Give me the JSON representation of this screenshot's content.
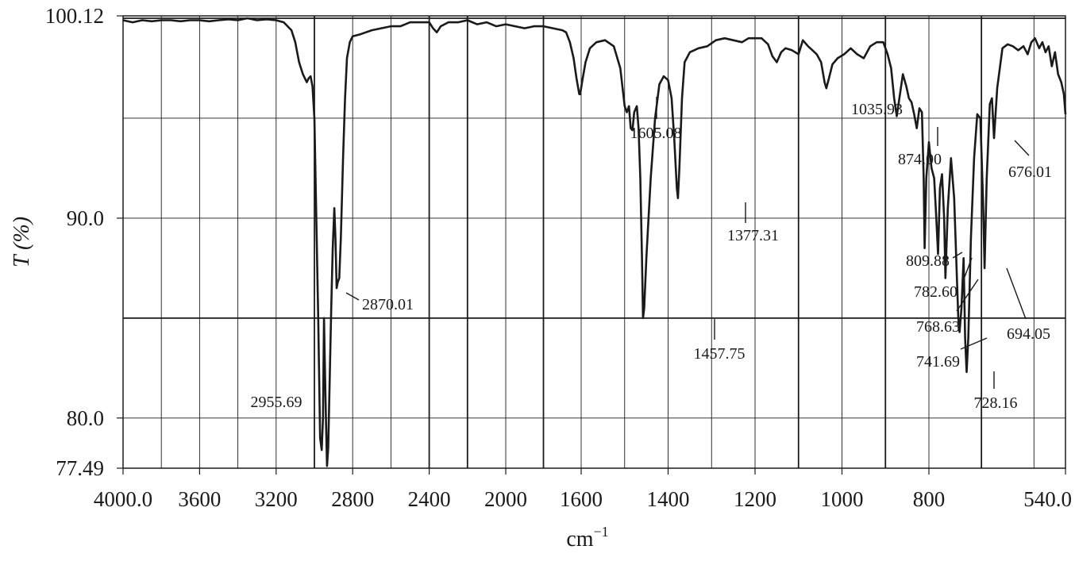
{
  "chart_data": {
    "type": "line",
    "title": "",
    "xlabel": "cm",
    "xlabel_superscript": "−1",
    "ylabel": "T (%)",
    "x_reversed": true,
    "xlim": [
      4000.0,
      540.0
    ],
    "ylim": [
      77.49,
      100.12
    ],
    "x_tick_labels": [
      {
        "value": 4000,
        "label": "4000.0"
      },
      {
        "value": 3600,
        "label": "3600"
      },
      {
        "value": 3200,
        "label": "3200"
      },
      {
        "value": 2800,
        "label": "2800"
      },
      {
        "value": 2400,
        "label": "2400"
      },
      {
        "value": 2000,
        "label": "2000"
      },
      {
        "value": 1600,
        "label": "1600"
      },
      {
        "value": 1400,
        "label": "1400"
      },
      {
        "value": 1200,
        "label": "1200"
      },
      {
        "value": 1000,
        "label": "1000"
      },
      {
        "value": 800,
        "label": "800"
      },
      {
        "value": 540,
        "label": "540.0"
      }
    ],
    "y_tick_labels": [
      {
        "value": 100.12,
        "label": "100.12"
      },
      {
        "value": 90.0,
        "label": "90.0"
      },
      {
        "value": 80.0,
        "label": "80.0"
      },
      {
        "value": 77.49,
        "label": "77.49"
      }
    ],
    "grid": true,
    "x_gridlines": [
      3800,
      3600,
      3400,
      3200,
      3000,
      2800,
      2600,
      2400,
      2200,
      2000,
      1800,
      1600,
      1500,
      1400,
      1300,
      1200,
      1100,
      1000,
      900,
      800,
      700,
      600
    ],
    "x_gridlines_major": [
      3000,
      2400,
      2200,
      1800,
      1100,
      900,
      700
    ],
    "y_gridlines": [
      100.0,
      95.0,
      90.0,
      85.0,
      80.0
    ],
    "y_gridlines_major": [
      100.0,
      85.0
    ],
    "series": [
      {
        "points": [
          [
            4000,
            99.9
          ],
          [
            3950,
            99.8
          ],
          [
            3900,
            99.9
          ],
          [
            3850,
            99.85
          ],
          [
            3800,
            99.9
          ],
          [
            3750,
            99.9
          ],
          [
            3700,
            99.85
          ],
          [
            3650,
            99.9
          ],
          [
            3600,
            99.9
          ],
          [
            3550,
            99.85
          ],
          [
            3500,
            99.9
          ],
          [
            3450,
            99.95
          ],
          [
            3400,
            99.9
          ],
          [
            3350,
            100.0
          ],
          [
            3300,
            99.9
          ],
          [
            3250,
            99.95
          ],
          [
            3200,
            99.9
          ],
          [
            3160,
            99.8
          ],
          [
            3120,
            99.4
          ],
          [
            3100,
            98.8
          ],
          [
            3080,
            97.8
          ],
          [
            3060,
            97.2
          ],
          [
            3040,
            96.8
          ],
          [
            3030,
            97.0
          ],
          [
            3020,
            97.1
          ],
          [
            3010,
            96.6
          ],
          [
            3000,
            95.0
          ],
          [
            2990,
            90.0
          ],
          [
            2980,
            85.0
          ],
          [
            2970,
            79.0
          ],
          [
            2962,
            78.4
          ],
          [
            2955,
            80.0
          ],
          [
            2950,
            85.0
          ],
          [
            2946,
            83.0
          ],
          [
            2940,
            80.0
          ],
          [
            2934,
            77.6
          ],
          [
            2928,
            78.5
          ],
          [
            2920,
            82.0
          ],
          [
            2912,
            85.5
          ],
          [
            2904,
            88.5
          ],
          [
            2896,
            90.5
          ],
          [
            2890,
            89.0
          ],
          [
            2884,
            86.5
          ],
          [
            2878,
            86.8
          ],
          [
            2870,
            87.0
          ],
          [
            2862,
            89.0
          ],
          [
            2850,
            93.0
          ],
          [
            2840,
            96.0
          ],
          [
            2830,
            98.0
          ],
          [
            2815,
            98.8
          ],
          [
            2800,
            99.1
          ],
          [
            2760,
            99.2
          ],
          [
            2700,
            99.4
          ],
          [
            2650,
            99.5
          ],
          [
            2600,
            99.6
          ],
          [
            2550,
            99.6
          ],
          [
            2500,
            99.8
          ],
          [
            2450,
            99.8
          ],
          [
            2400,
            99.8
          ],
          [
            2380,
            99.5
          ],
          [
            2360,
            99.3
          ],
          [
            2340,
            99.6
          ],
          [
            2320,
            99.7
          ],
          [
            2300,
            99.8
          ],
          [
            2250,
            99.8
          ],
          [
            2200,
            99.9
          ],
          [
            2150,
            99.7
          ],
          [
            2100,
            99.8
          ],
          [
            2050,
            99.6
          ],
          [
            2000,
            99.7
          ],
          [
            1950,
            99.6
          ],
          [
            1900,
            99.5
          ],
          [
            1850,
            99.6
          ],
          [
            1800,
            99.6
          ],
          [
            1750,
            99.5
          ],
          [
            1700,
            99.4
          ],
          [
            1680,
            99.3
          ],
          [
            1660,
            98.8
          ],
          [
            1640,
            98.0
          ],
          [
            1625,
            97.0
          ],
          [
            1610,
            96.2
          ],
          [
            1605,
            96.2
          ],
          [
            1598,
            96.8
          ],
          [
            1590,
            97.8
          ],
          [
            1580,
            98.5
          ],
          [
            1565,
            98.8
          ],
          [
            1545,
            98.9
          ],
          [
            1525,
            98.6
          ],
          [
            1510,
            97.5
          ],
          [
            1500,
            95.6
          ],
          [
            1495,
            95.3
          ],
          [
            1490,
            95.6
          ],
          [
            1486,
            94.5
          ],
          [
            1482,
            94.4
          ],
          [
            1478,
            95.3
          ],
          [
            1472,
            95.6
          ],
          [
            1468,
            94.5
          ],
          [
            1464,
            92.0
          ],
          [
            1460,
            88.0
          ],
          [
            1457.75,
            85.0
          ],
          [
            1455,
            85.5
          ],
          [
            1450,
            88.0
          ],
          [
            1440,
            92.0
          ],
          [
            1430,
            95.0
          ],
          [
            1420,
            96.7
          ],
          [
            1410,
            97.1
          ],
          [
            1400,
            96.9
          ],
          [
            1392,
            96.0
          ],
          [
            1386,
            94.0
          ],
          [
            1380,
            91.5
          ],
          [
            1377.31,
            91.0
          ],
          [
            1374,
            92.5
          ],
          [
            1368,
            96.0
          ],
          [
            1362,
            97.8
          ],
          [
            1350,
            98.3
          ],
          [
            1330,
            98.5
          ],
          [
            1310,
            98.6
          ],
          [
            1290,
            98.9
          ],
          [
            1270,
            99.0
          ],
          [
            1250,
            98.9
          ],
          [
            1230,
            98.8
          ],
          [
            1215,
            99.0
          ],
          [
            1200,
            99.0
          ],
          [
            1185,
            99.0
          ],
          [
            1170,
            98.7
          ],
          [
            1160,
            98.1
          ],
          [
            1150,
            97.8
          ],
          [
            1140,
            98.3
          ],
          [
            1130,
            98.5
          ],
          [
            1115,
            98.4
          ],
          [
            1100,
            98.2
          ],
          [
            1090,
            98.9
          ],
          [
            1078,
            98.6
          ],
          [
            1068,
            98.4
          ],
          [
            1058,
            98.2
          ],
          [
            1048,
            97.8
          ],
          [
            1040,
            96.8
          ],
          [
            1035.93,
            96.5
          ],
          [
            1030,
            97.0
          ],
          [
            1022,
            97.7
          ],
          [
            1010,
            98.0
          ],
          [
            995,
            98.2
          ],
          [
            980,
            98.5
          ],
          [
            965,
            98.2
          ],
          [
            950,
            98.0
          ],
          [
            935,
            98.6
          ],
          [
            920,
            98.8
          ],
          [
            905,
            98.8
          ],
          [
            895,
            98.2
          ],
          [
            887,
            97.5
          ],
          [
            880,
            96.0
          ],
          [
            874,
            95.1
          ],
          [
            868,
            96.0
          ],
          [
            860,
            97.2
          ],
          [
            852,
            96.6
          ],
          [
            846,
            96.0
          ],
          [
            840,
            95.8
          ],
          [
            834,
            95.2
          ],
          [
            828,
            94.5
          ],
          [
            822,
            95.5
          ],
          [
            816,
            95.3
          ],
          [
            812,
            92.0
          ],
          [
            809.88,
            88.5
          ],
          [
            806,
            92.0
          ],
          [
            800,
            93.8
          ],
          [
            795,
            92.5
          ],
          [
            790,
            92.0
          ],
          [
            786,
            90.0
          ],
          [
            782.6,
            88.2
          ],
          [
            779,
            91.5
          ],
          [
            775,
            92.2
          ],
          [
            771,
            90.0
          ],
          [
            768.63,
            87.0
          ],
          [
            764,
            90.5
          ],
          [
            758,
            93.0
          ],
          [
            752,
            91.0
          ],
          [
            748,
            88.0
          ],
          [
            744,
            85.0
          ],
          [
            741.69,
            84.3
          ],
          [
            738,
            85.5
          ],
          [
            734,
            88.0
          ],
          [
            731,
            84.0
          ],
          [
            728.16,
            82.3
          ],
          [
            725,
            84.0
          ],
          [
            720,
            89.0
          ],
          [
            714,
            93.0
          ],
          [
            708,
            95.2
          ],
          [
            702,
            95.0
          ],
          [
            697,
            91.0
          ],
          [
            694.05,
            87.5
          ],
          [
            690,
            92.0
          ],
          [
            684,
            95.7
          ],
          [
            680,
            96.0
          ],
          [
            676.01,
            94.0
          ],
          [
            670,
            96.5
          ],
          [
            660,
            98.5
          ],
          [
            650,
            98.7
          ],
          [
            640,
            98.6
          ],
          [
            630,
            98.4
          ],
          [
            620,
            98.6
          ],
          [
            612,
            98.2
          ],
          [
            605,
            98.8
          ],
          [
            598,
            99.0
          ],
          [
            590,
            98.5
          ],
          [
            584,
            98.8
          ],
          [
            578,
            98.3
          ],
          [
            572,
            98.6
          ],
          [
            566,
            97.6
          ],
          [
            560,
            98.3
          ],
          [
            554,
            97.2
          ],
          [
            548,
            96.8
          ],
          [
            543,
            96.2
          ],
          [
            540,
            95.2
          ]
        ]
      }
    ],
    "annotations": [
      {
        "text": "2955.69",
        "x": 2955.69,
        "y": 80.7
      },
      {
        "text": "2870.01",
        "x": 2870.01,
        "y": 87.0
      },
      {
        "text": "1605.08",
        "x": 1605.08,
        "y": 96.2
      },
      {
        "text": "1457.75",
        "x": 1457.75,
        "y": 85.0
      },
      {
        "text": "1377.31",
        "x": 1377.31,
        "y": 91.0
      },
      {
        "text": "1035.93",
        "x": 1035.93,
        "y": 96.5
      },
      {
        "text": "874.00",
        "x": 874.0,
        "y": 95.1
      },
      {
        "text": "809.88",
        "x": 809.88,
        "y": 88.5
      },
      {
        "text": "782.60",
        "x": 782.6,
        "y": 88.2
      },
      {
        "text": "768.63",
        "x": 768.63,
        "y": 87.0
      },
      {
        "text": "741.69",
        "x": 741.69,
        "y": 84.3
      },
      {
        "text": "728.16",
        "x": 728.16,
        "y": 82.3
      },
      {
        "text": "694.05",
        "x": 694.05,
        "y": 87.5
      },
      {
        "text": "676.01",
        "x": 676.01,
        "y": 94.0
      }
    ]
  }
}
